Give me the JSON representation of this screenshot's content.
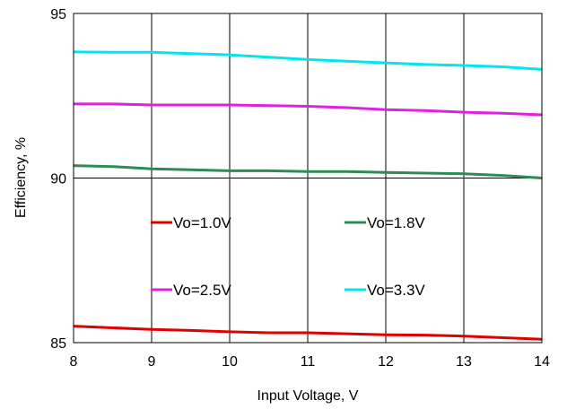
{
  "chart_data": {
    "type": "line",
    "title": "",
    "xlabel": "Input Voltage, V",
    "ylabel": "Efficiency, %",
    "xlim": [
      8,
      14
    ],
    "ylim": [
      85,
      95
    ],
    "xticks": [
      "8",
      "9",
      "10",
      "11",
      "12",
      "13",
      "14"
    ],
    "yticks": [
      "85",
      "90",
      "95"
    ],
    "grid": "vertical gridlines at each integer x; horizontal gridline at 90",
    "legend_placement": "inside-lower-center",
    "series": [
      {
        "name": "Vo=1.0V",
        "color": "#e00000",
        "x": [
          8,
          8.5,
          9,
          9.5,
          10,
          10.5,
          11,
          11.5,
          12,
          12.5,
          13,
          13.5,
          14
        ],
        "y": [
          85.5,
          85.45,
          85.4,
          85.37,
          85.33,
          85.3,
          85.3,
          85.27,
          85.24,
          85.23,
          85.2,
          85.15,
          85.1
        ]
      },
      {
        "name": "Vo=1.8V",
        "color": "#2e8b57",
        "x": [
          8,
          8.5,
          9,
          9.5,
          10,
          10.5,
          11,
          11.5,
          12,
          12.5,
          13,
          13.5,
          14
        ],
        "y": [
          90.38,
          90.35,
          90.28,
          90.25,
          90.22,
          90.22,
          90.2,
          90.2,
          90.17,
          90.15,
          90.13,
          90.08,
          90.0
        ]
      },
      {
        "name": "Vo=2.5V",
        "color": "#e020e0",
        "x": [
          8,
          8.5,
          9,
          9.5,
          10,
          10.5,
          11,
          11.5,
          12,
          12.5,
          13,
          13.5,
          14
        ],
        "y": [
          92.25,
          92.25,
          92.22,
          92.22,
          92.22,
          92.2,
          92.18,
          92.14,
          92.08,
          92.05,
          92.0,
          91.97,
          91.92
        ]
      },
      {
        "name": "Vo=3.3V",
        "color": "#00e5ee",
        "x": [
          8,
          8.5,
          9,
          9.5,
          10,
          10.5,
          11,
          11.5,
          12,
          12.5,
          13,
          13.5,
          14
        ],
        "y": [
          93.83,
          93.82,
          93.82,
          93.78,
          93.74,
          93.67,
          93.6,
          93.55,
          93.5,
          93.45,
          93.42,
          93.38,
          93.3
        ]
      }
    ],
    "legend": [
      {
        "name": "Vo=1.0V",
        "color": "#e00000"
      },
      {
        "name": "Vo=1.8V",
        "color": "#2e8b57"
      },
      {
        "name": "Vo=2.5V",
        "color": "#e020e0"
      },
      {
        "name": "Vo=3.3V",
        "color": "#00e5ee"
      }
    ]
  }
}
